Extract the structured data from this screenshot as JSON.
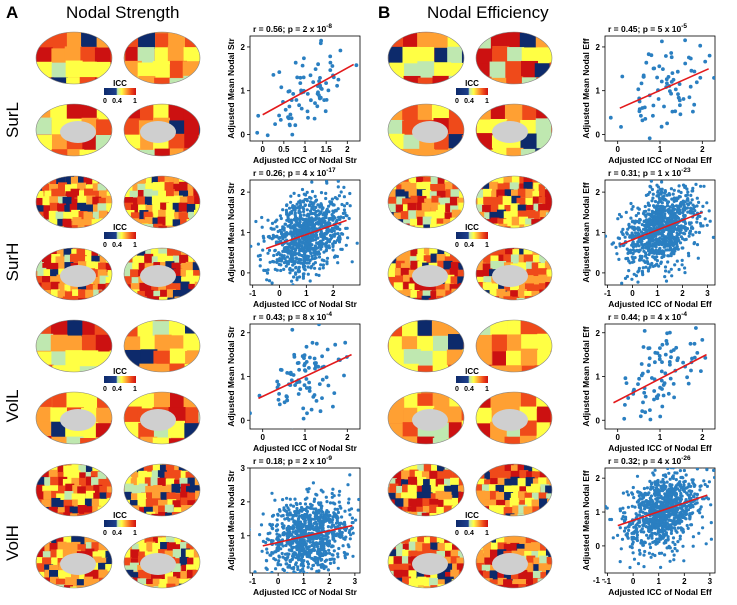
{
  "panels": [
    {
      "letter": "A",
      "title": "Nodal Strength"
    },
    {
      "letter": "B",
      "title": "Nodal Efficiency"
    }
  ],
  "row_labels": [
    "SurL",
    "SurH",
    "VolL",
    "VolH"
  ],
  "icc_legend": {
    "title": "ICC",
    "ticks": [
      "0",
      "0.4",
      "1"
    ]
  },
  "colors": {
    "points": "#2a7fc1",
    "fit": "#e31a1c",
    "colormap": [
      "#0d2a6b",
      "#1d3f8c",
      "#bfe8b0",
      "#ffff44",
      "#ffa033",
      "#ef4a1a",
      "#cc1111"
    ]
  },
  "chart_data": [
    {
      "id": "SurL-Str",
      "type": "scatter",
      "stat": "r = 0.56; p = 2 x 10",
      "stat_exp": "-8",
      "xlabel": "Adjusted ICC of Nodal Str",
      "ylabel": "Adjusted Mean Nodal Str",
      "xlim": [
        -0.3,
        2.3
      ],
      "ylim": [
        -0.15,
        2.25
      ],
      "xticks": [
        "0",
        "0.5",
        "1",
        "1.5",
        "2"
      ],
      "yticks": [
        "0",
        "1",
        "2"
      ],
      "xtick_vals": [
        0,
        0.5,
        1,
        1.5,
        2
      ],
      "ytick_vals": [
        0,
        1,
        2
      ],
      "fit": {
        "x": [
          0,
          2.15
        ],
        "y": [
          0.45,
          1.6
        ]
      },
      "n_points": 80,
      "seed": 11
    },
    {
      "id": "SurL-Eff",
      "type": "scatter",
      "stat": "r = 0.45; p = 5 x 10",
      "stat_exp": "-5",
      "xlabel": "Adjusted ICC of Nodal Eff",
      "ylabel": "Adjusted Mean Nodal Eff",
      "xlim": [
        -0.3,
        2.3
      ],
      "ylim": [
        -0.15,
        2.25
      ],
      "xticks": [
        "0",
        "1",
        "2"
      ],
      "yticks": [
        "0",
        "1",
        "2"
      ],
      "xtick_vals": [
        0,
        1,
        2
      ],
      "ytick_vals": [
        0,
        1,
        2
      ],
      "fit": {
        "x": [
          0.05,
          2.15
        ],
        "y": [
          0.6,
          1.5
        ]
      },
      "n_points": 80,
      "seed": 23
    },
    {
      "id": "SurH-Str",
      "type": "scatter",
      "stat": "r = 0.26; p = 4 x 10",
      "stat_exp": "-17",
      "xlabel": "Adjusted ICC of Nodal Str",
      "ylabel": "Adjusted Mean Nodal Str",
      "xlim": [
        -1.1,
        3.0
      ],
      "ylim": [
        -0.3,
        2.3
      ],
      "xticks": [
        "-1",
        "0",
        "1",
        "2"
      ],
      "yticks": [
        "0",
        "1",
        "2"
      ],
      "xtick_vals": [
        -1,
        0,
        1,
        2
      ],
      "ytick_vals": [
        0,
        1,
        2
      ],
      "fit": {
        "x": [
          -0.5,
          2.5
        ],
        "y": [
          0.6,
          1.3
        ]
      },
      "n_points": 900,
      "seed": 37
    },
    {
      "id": "SurH-Eff",
      "type": "scatter",
      "stat": "r = 0.31; p = 1 x 10",
      "stat_exp": "-23",
      "xlabel": "Adjusted ICC of Nodal Eff",
      "ylabel": "Adjusted Mean Nodal Eff",
      "xlim": [
        -1.1,
        3.3
      ],
      "ylim": [
        -0.3,
        2.3
      ],
      "xticks": [
        "-1",
        "0",
        "1",
        "2",
        "3"
      ],
      "yticks": [
        "0",
        "1",
        "2"
      ],
      "xtick_vals": [
        -1,
        0,
        1,
        2,
        3
      ],
      "ytick_vals": [
        0,
        1,
        2
      ],
      "fit": {
        "x": [
          -0.5,
          2.8
        ],
        "y": [
          0.7,
          1.5
        ]
      },
      "n_points": 900,
      "seed": 41
    },
    {
      "id": "VolL-Str",
      "type": "scatter",
      "stat": "r = 0.43; p = 8 x 10",
      "stat_exp": "-4",
      "xlabel": "Adjusted ICC of Nodal Str",
      "ylabel": "Adjusted Mean Nodal Str",
      "xlim": [
        -0.3,
        2.3
      ],
      "ylim": [
        -0.2,
        2.2
      ],
      "xticks": [
        "0",
        "1",
        "2"
      ],
      "yticks": [
        "0",
        "1",
        "2"
      ],
      "xtick_vals": [
        0,
        1,
        2
      ],
      "ytick_vals": [
        0,
        1,
        2
      ],
      "fit": {
        "x": [
          -0.1,
          2.1
        ],
        "y": [
          0.5,
          1.5
        ]
      },
      "n_points": 90,
      "seed": 53
    },
    {
      "id": "VolL-Eff",
      "type": "scatter",
      "stat": "r = 0.44; p = 4 x 10",
      "stat_exp": "-4",
      "xlabel": "Adjusted ICC of Nodal Eff",
      "ylabel": "Adjusted Mean Nodal Eff",
      "xlim": [
        -0.3,
        2.3
      ],
      "ylim": [
        -0.2,
        2.2
      ],
      "xticks": [
        "0",
        "1",
        "2"
      ],
      "yticks": [
        "0",
        "1",
        "2"
      ],
      "xtick_vals": [
        0,
        1,
        2
      ],
      "ytick_vals": [
        0,
        1,
        2
      ],
      "fit": {
        "x": [
          -0.1,
          2.1
        ],
        "y": [
          0.4,
          1.5
        ]
      },
      "n_points": 90,
      "seed": 67
    },
    {
      "id": "VolH-Str",
      "type": "scatter",
      "stat": "r = 0.18; p = 2 x 10",
      "stat_exp": "-9",
      "xlabel": "Adjusted ICC of Nodal Str",
      "ylabel": "Adjusted Mean Nodal Str",
      "xlim": [
        -1.1,
        3.2
      ],
      "ylim": [
        -0.1,
        3.0
      ],
      "xticks": [
        "-1",
        "0",
        "1",
        "2",
        "3"
      ],
      "yticks": [
        "1",
        "2",
        "3"
      ],
      "xtick_vals": [
        -1,
        0,
        1,
        2,
        3
      ],
      "ytick_vals": [
        1,
        2,
        3
      ],
      "fit": {
        "x": [
          -0.6,
          2.9
        ],
        "y": [
          0.7,
          1.3
        ]
      },
      "n_points": 900,
      "seed": 79
    },
    {
      "id": "VolH-Eff",
      "type": "scatter",
      "stat": "r = 0.32; p = 4 x 10",
      "stat_exp": "-26",
      "xlabel": "Adjusted ICC of Nodal Eff",
      "ylabel": "Adjusted Mean Nodal Eff",
      "xlim": [
        -1.1,
        3.2
      ],
      "ylim": [
        -0.8,
        2.3
      ],
      "xticks": [
        "-1",
        "0",
        "1",
        "2",
        "3"
      ],
      "yticks": [
        "-1",
        "0",
        "1",
        "2"
      ],
      "xtick_vals": [
        -1,
        0,
        1,
        2,
        3
      ],
      "ytick_vals": [
        -1,
        0,
        1,
        2
      ],
      "fit": {
        "x": [
          -0.6,
          2.9
        ],
        "y": [
          0.6,
          1.5
        ]
      },
      "n_points": 900,
      "seed": 97
    }
  ]
}
